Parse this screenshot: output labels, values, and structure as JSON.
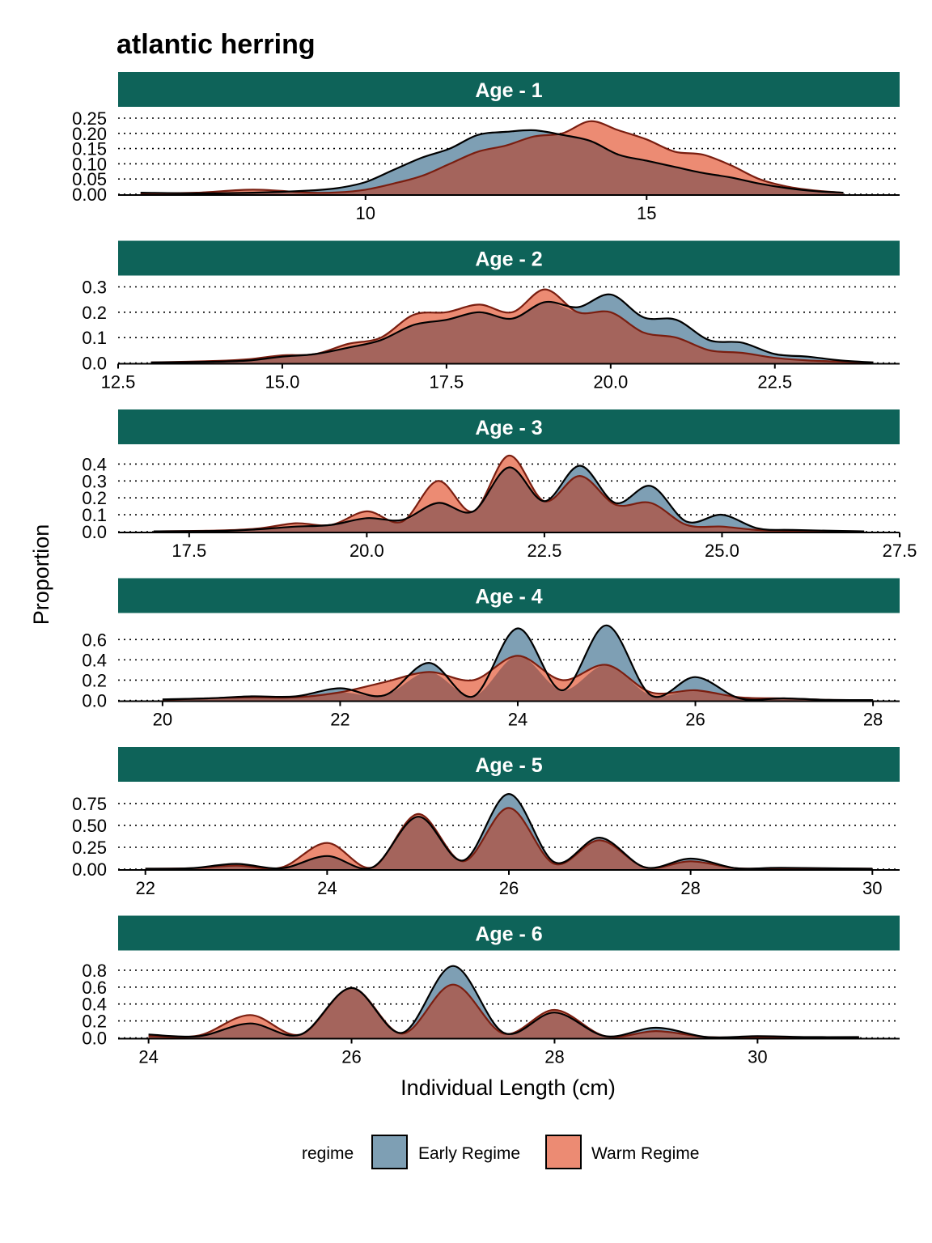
{
  "title": "atlantic herring",
  "colors": {
    "strip": "#0e6359",
    "early": "#7e9fb4",
    "warm": "#ec8b73",
    "overlap": "#a4645c"
  },
  "chart_data": {
    "type": "area",
    "title": "atlantic herring",
    "xlabel": "Individual Length (cm)",
    "ylabel": "Proportion",
    "grid": "horizontal dotted",
    "legend": {
      "title": "regime",
      "position": "bottom",
      "entries": [
        "Early Regime",
        "Warm Regime"
      ]
    },
    "panels": [
      {
        "strip": "Age - 1",
        "xlim": [
          5.6,
          19.5
        ],
        "xticks": [
          10,
          15
        ],
        "xtick_labels": [
          "10",
          "15"
        ],
        "ylim": [
          0,
          0.25
        ],
        "yticks": [
          0,
          0.05,
          0.1,
          0.15,
          0.2,
          0.25
        ],
        "ytick_labels": [
          "0.00",
          "0.05",
          "0.10",
          "0.15",
          "0.20",
          "0.25"
        ],
        "series": [
          {
            "name": "Early Regime",
            "x": [
              6,
              7,
              8,
              9,
              9.5,
              10,
              10.5,
              11,
              11.5,
              12,
              12.5,
              13,
              13.5,
              14,
              14.5,
              15,
              15.5,
              16,
              16.5,
              17,
              17.5,
              18,
              18.5
            ],
            "y": [
              0.005,
              0.003,
              0.005,
              0.012,
              0.02,
              0.04,
              0.08,
              0.12,
              0.15,
              0.195,
              0.205,
              0.21,
              0.195,
              0.175,
              0.13,
              0.11,
              0.09,
              0.07,
              0.055,
              0.035,
              0.02,
              0.01,
              0.005
            ]
          },
          {
            "name": "Warm Regime",
            "x": [
              6,
              7,
              8,
              9,
              9.5,
              10,
              10.5,
              11,
              11.5,
              12,
              12.5,
              13,
              13.5,
              14,
              14.5,
              15,
              15.5,
              16,
              16.5,
              17,
              17.5,
              18,
              18.5
            ],
            "y": [
              0.003,
              0.005,
              0.015,
              0.005,
              0.006,
              0.015,
              0.035,
              0.06,
              0.1,
              0.14,
              0.16,
              0.19,
              0.2,
              0.24,
              0.21,
              0.18,
              0.14,
              0.13,
              0.095,
              0.05,
              0.025,
              0.012,
              0.005
            ]
          }
        ]
      },
      {
        "strip": "Age - 2",
        "xlim": [
          12.5,
          24.4
        ],
        "xticks": [
          12.5,
          15.0,
          17.5,
          20.0,
          22.5
        ],
        "xtick_labels": [
          "12.5",
          "15.0",
          "17.5",
          "20.0",
          "22.5"
        ],
        "ylim": [
          0,
          0.3
        ],
        "yticks": [
          0,
          0.1,
          0.2,
          0.3
        ],
        "ytick_labels": [
          "0.0",
          "0.1",
          "0.2",
          "0.3"
        ],
        "series": [
          {
            "name": "Early Regime",
            "x": [
              13,
              14,
              14.5,
              15,
              15.5,
              16,
              16.5,
              17,
              17.5,
              18,
              18.5,
              19,
              19.5,
              20,
              20.5,
              21,
              21.5,
              22,
              22.5,
              23,
              23.5,
              24
            ],
            "y": [
              0.002,
              0.005,
              0.01,
              0.025,
              0.035,
              0.06,
              0.09,
              0.15,
              0.17,
              0.2,
              0.175,
              0.24,
              0.22,
              0.27,
              0.18,
              0.17,
              0.09,
              0.08,
              0.035,
              0.025,
              0.01,
              0.002
            ]
          },
          {
            "name": "Warm Regime",
            "x": [
              13,
              14,
              14.5,
              15,
              15.5,
              16,
              16.5,
              17,
              17.5,
              18,
              18.5,
              19,
              19.5,
              20,
              20.5,
              21,
              21.5,
              22,
              22.5,
              23,
              23.5,
              24
            ],
            "y": [
              0.002,
              0.008,
              0.015,
              0.03,
              0.035,
              0.075,
              0.1,
              0.19,
              0.2,
              0.23,
              0.2,
              0.29,
              0.2,
              0.2,
              0.12,
              0.1,
              0.05,
              0.04,
              0.02,
              0.01,
              0.005,
              0.002
            ]
          }
        ]
      },
      {
        "strip": "Age - 3",
        "xlim": [
          16.5,
          27.5
        ],
        "xticks": [
          17.5,
          20.0,
          22.5,
          25.0,
          27.5
        ],
        "xtick_labels": [
          "17.5",
          "20.0",
          "22.5",
          "25.0",
          "27.5"
        ],
        "ylim": [
          0,
          0.45
        ],
        "yticks": [
          0,
          0.1,
          0.2,
          0.3,
          0.4
        ],
        "ytick_labels": [
          "0.0",
          "0.1",
          "0.2",
          "0.3",
          "0.4"
        ],
        "series": [
          {
            "name": "Early Regime",
            "x": [
              17,
              18,
              18.5,
              19,
              19.5,
              20,
              20.5,
              21,
              21.5,
              22,
              22.5,
              23,
              23.5,
              24,
              24.5,
              25,
              25.5,
              26,
              27
            ],
            "y": [
              0.002,
              0.005,
              0.015,
              0.03,
              0.04,
              0.08,
              0.07,
              0.17,
              0.12,
              0.38,
              0.18,
              0.39,
              0.17,
              0.27,
              0.06,
              0.1,
              0.02,
              0.01,
              0.002
            ]
          },
          {
            "name": "Warm Regime",
            "x": [
              17,
              18,
              18.5,
              19,
              19.5,
              20,
              20.5,
              21,
              21.5,
              22,
              22.5,
              23,
              23.5,
              24,
              24.5,
              25,
              25.5,
              26,
              27
            ],
            "y": [
              0.002,
              0.008,
              0.02,
              0.05,
              0.04,
              0.12,
              0.06,
              0.3,
              0.12,
              0.45,
              0.18,
              0.33,
              0.16,
              0.17,
              0.04,
              0.03,
              0.01,
              0.005,
              0.002
            ]
          }
        ]
      },
      {
        "strip": "Age - 4",
        "xlim": [
          19.5,
          28.3
        ],
        "xticks": [
          20,
          22,
          24,
          26,
          28
        ],
        "xtick_labels": [
          "20",
          "22",
          "24",
          "26",
          "28"
        ],
        "ylim": [
          0,
          0.75
        ],
        "yticks": [
          0,
          0.2,
          0.4,
          0.6
        ],
        "ytick_labels": [
          "0.0",
          "0.2",
          "0.4",
          "0.6"
        ],
        "series": [
          {
            "name": "Early Regime",
            "x": [
              20,
              20.5,
              21,
              21.5,
              22,
              22.5,
              23,
              23.5,
              24,
              24.5,
              25,
              25.5,
              26,
              26.5,
              27,
              27.5,
              28
            ],
            "y": [
              0.01,
              0.02,
              0.04,
              0.04,
              0.12,
              0.05,
              0.37,
              0.04,
              0.71,
              0.1,
              0.74,
              0.05,
              0.23,
              0.02,
              0.02,
              0.005,
              0.003
            ]
          },
          {
            "name": "Warm Regime",
            "x": [
              20,
              20.5,
              21,
              21.5,
              22,
              22.5,
              23,
              23.5,
              24,
              24.5,
              25,
              25.5,
              26,
              26.5,
              27,
              27.5,
              28
            ],
            "y": [
              0.005,
              0.02,
              0.03,
              0.03,
              0.08,
              0.18,
              0.28,
              0.2,
              0.44,
              0.2,
              0.35,
              0.08,
              0.1,
              0.03,
              0.02,
              0.005,
              0.002
            ]
          }
        ]
      },
      {
        "strip": "Age - 5",
        "xlim": [
          21.7,
          30.3
        ],
        "xticks": [
          22,
          24,
          26,
          28,
          30
        ],
        "xtick_labels": [
          "22",
          "24",
          "26",
          "28",
          "30"
        ],
        "ylim": [
          0,
          0.87
        ],
        "yticks": [
          0,
          0.25,
          0.5,
          0.75
        ],
        "ytick_labels": [
          "0.00",
          "0.25",
          "0.50",
          "0.75"
        ],
        "series": [
          {
            "name": "Early Regime",
            "x": [
              22,
              22.5,
              23,
              23.5,
              24,
              24.5,
              25,
              25.5,
              26,
              26.5,
              27,
              27.5,
              28,
              28.5,
              29,
              30
            ],
            "y": [
              0.005,
              0.01,
              0.06,
              0.01,
              0.15,
              0.02,
              0.6,
              0.1,
              0.86,
              0.08,
              0.36,
              0.02,
              0.12,
              0.01,
              0.015,
              0.005
            ]
          },
          {
            "name": "Warm Regime",
            "x": [
              22,
              22.5,
              23,
              23.5,
              24,
              24.5,
              25,
              25.5,
              26,
              26.5,
              27,
              27.5,
              28,
              28.5,
              29,
              30
            ],
            "y": [
              0.005,
              0.01,
              0.04,
              0.02,
              0.3,
              0.02,
              0.63,
              0.09,
              0.7,
              0.06,
              0.33,
              0.02,
              0.09,
              0.01,
              0.01,
              0.005
            ]
          }
        ]
      },
      {
        "strip": "Age - 6",
        "xlim": [
          23.7,
          31.4
        ],
        "xticks": [
          24,
          26,
          28,
          30
        ],
        "xtick_labels": [
          "24",
          "26",
          "28",
          "30"
        ],
        "ylim": [
          0,
          0.9
        ],
        "yticks": [
          0,
          0.2,
          0.4,
          0.6,
          0.8
        ],
        "ytick_labels": [
          "0.0",
          "0.2",
          "0.4",
          "0.6",
          "0.8"
        ],
        "series": [
          {
            "name": "Early Regime",
            "x": [
              24,
              24.5,
              25,
              25.5,
              26,
              26.5,
              27,
              27.5,
              28,
              28.5,
              29,
              29.5,
              30,
              30.5,
              31
            ],
            "y": [
              0.04,
              0.02,
              0.17,
              0.04,
              0.59,
              0.06,
              0.85,
              0.06,
              0.3,
              0.02,
              0.12,
              0.01,
              0.02,
              0.01,
              0.01
            ]
          },
          {
            "name": "Warm Regime",
            "x": [
              24,
              24.5,
              25,
              25.5,
              26,
              26.5,
              27,
              27.5,
              28,
              28.5,
              29,
              29.5,
              30,
              30.5,
              31
            ],
            "y": [
              0.02,
              0.03,
              0.27,
              0.04,
              0.59,
              0.05,
              0.63,
              0.05,
              0.33,
              0.02,
              0.08,
              0.01,
              0.01,
              0.005,
              0.005
            ]
          }
        ]
      }
    ]
  }
}
